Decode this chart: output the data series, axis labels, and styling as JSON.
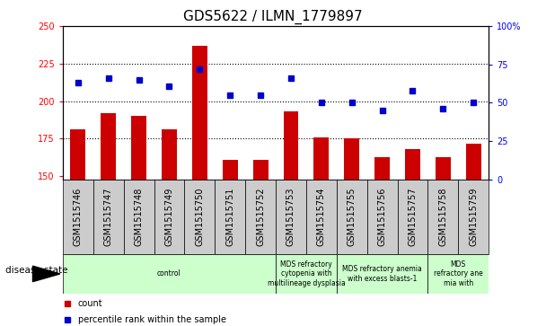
{
  "title": "GDS5622 / ILMN_1779897",
  "samples": [
    "GSM1515746",
    "GSM1515747",
    "GSM1515748",
    "GSM1515749",
    "GSM1515750",
    "GSM1515751",
    "GSM1515752",
    "GSM1515753",
    "GSM1515754",
    "GSM1515755",
    "GSM1515756",
    "GSM1515757",
    "GSM1515758",
    "GSM1515759"
  ],
  "counts": [
    181,
    192,
    190,
    181,
    237,
    161,
    161,
    193,
    176,
    175,
    163,
    168,
    163,
    172
  ],
  "percentiles": [
    63,
    66,
    65,
    61,
    72,
    55,
    55,
    66,
    50,
    50,
    45,
    58,
    46,
    50
  ],
  "ylim_left": [
    148,
    250
  ],
  "ylim_right": [
    0,
    100
  ],
  "yticks_left": [
    150,
    175,
    200,
    225,
    250
  ],
  "yticks_right": [
    0,
    25,
    50,
    75,
    100
  ],
  "bar_color": "#cc0000",
  "dot_color": "#0000cc",
  "bg_color": "#ffffff",
  "tick_bg_color": "#cccccc",
  "disease_groups": [
    {
      "label": "control",
      "start": 0,
      "end": 7
    },
    {
      "label": "MDS refractory\ncytopenia with\nmultilineage dysplasia",
      "start": 7,
      "end": 9
    },
    {
      "label": "MDS refractory anemia\nwith excess blasts-1",
      "start": 9,
      "end": 12
    },
    {
      "label": "MDS\nrefractory ane\nmia with",
      "start": 12,
      "end": 14
    }
  ],
  "disease_box_color": "#ccffcc",
  "legend_count_label": "count",
  "legend_percentile_label": "percentile rank within the sample",
  "xlabel_disease": "disease state",
  "title_fontsize": 11,
  "tick_fontsize": 7,
  "label_fontsize": 7.5
}
